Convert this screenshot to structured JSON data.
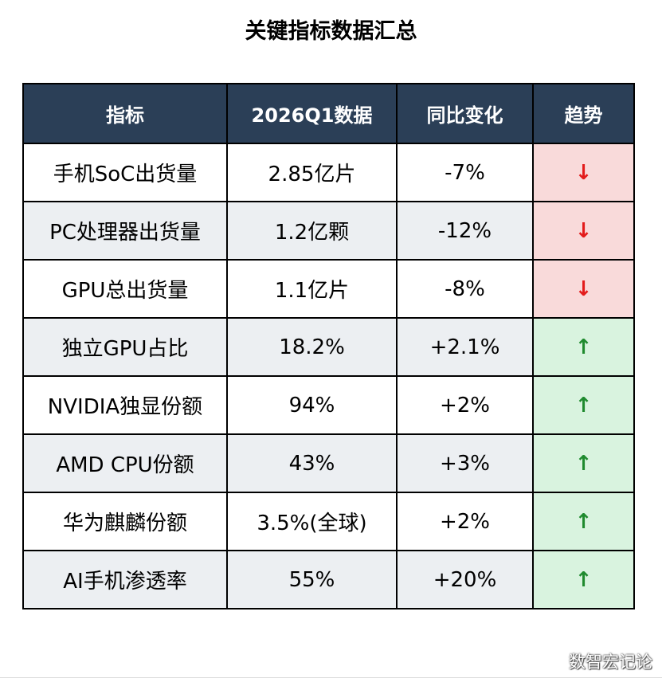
{
  "title": "关键指标数据汇总",
  "colors": {
    "header_bg": "#2b3f57",
    "header_text": "#ffffff",
    "row_odd_bg": "#ffffff",
    "row_even_bg": "#eceff2",
    "trend_down_bg": "#f9dada",
    "trend_up_bg": "#d9f3df",
    "down_arrow": "#e31b1b",
    "up_arrow": "#1f8a2e"
  },
  "chart_data": {
    "type": "table",
    "title": "关键指标数据汇总",
    "columns": [
      "指标",
      "2026Q1数据",
      "同比变化",
      "趋势"
    ],
    "rows": [
      {
        "metric": "手机SoC出货量",
        "value": "2.85亿片",
        "yoy": "-7%",
        "trend": "down",
        "arrow": "↓"
      },
      {
        "metric": "PC处理器出货量",
        "value": "1.2亿颗",
        "yoy": "-12%",
        "trend": "down",
        "arrow": "↓"
      },
      {
        "metric": "GPU总出货量",
        "value": "1.1亿片",
        "yoy": "-8%",
        "trend": "down",
        "arrow": "↓"
      },
      {
        "metric": "独立GPU占比",
        "value": "18.2%",
        "yoy": "+2.1%",
        "trend": "up",
        "arrow": "↑"
      },
      {
        "metric": "NVIDIA独显份额",
        "value": "94%",
        "yoy": "+2%",
        "trend": "up",
        "arrow": "↑"
      },
      {
        "metric": "AMD CPU份额",
        "value": "43%",
        "yoy": "+3%",
        "trend": "up",
        "arrow": "↑"
      },
      {
        "metric": "华为麒麟份额",
        "value": "3.5%(全球)",
        "yoy": "+2%",
        "trend": "up",
        "arrow": "↑"
      },
      {
        "metric": "AI手机渗透率",
        "value": "55%",
        "yoy": "+20%",
        "trend": "up",
        "arrow": "↑"
      }
    ]
  },
  "watermark": "数智宏记论"
}
